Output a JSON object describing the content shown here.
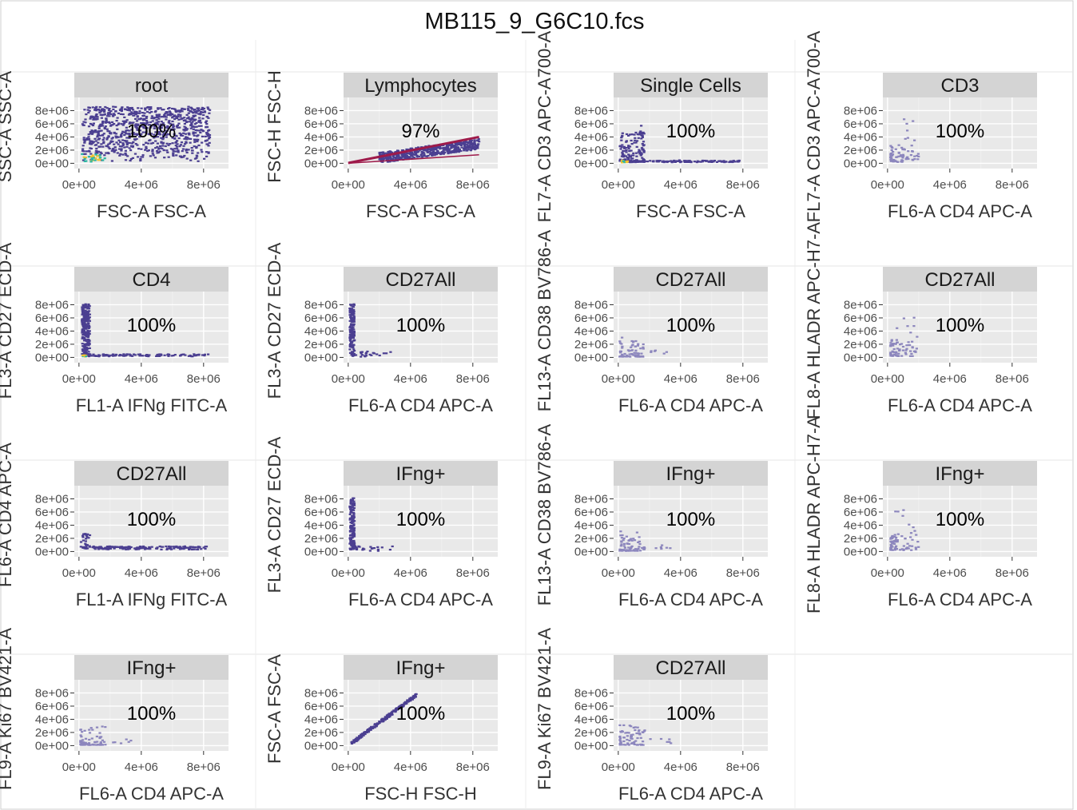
{
  "title": "MB115_9_G6C10.fcs",
  "chart_data": {
    "type": "scatter",
    "title": "MB115_9_G6C10.fcs",
    "x_tick_labels": [
      "0e+00",
      "4e+06",
      "8e+06"
    ],
    "y_tick_labels": [
      "0e+00",
      "2e+06",
      "4e+06",
      "6e+06",
      "8e+06"
    ],
    "xlim": [
      -300000,
      9600000
    ],
    "ylim": [
      -800000,
      10000000
    ],
    "colors": {
      "hex": "#4b3f91",
      "hex_light": "#8c86bd",
      "line": "#9e1a4a",
      "strip": "#d4d4d4",
      "panel": "#e9e9e9"
    },
    "panels": [
      {
        "gate": "root",
        "xlabel": "FSC-A FSC-A",
        "ylabel": "SSC-A SSC-A",
        "percent": "100%",
        "pattern": "dense"
      },
      {
        "gate": "Lymphocytes",
        "xlabel": "FSC-A FSC-A",
        "ylabel": "FSC-H FSC-H",
        "percent": "97%",
        "pattern": "ramp"
      },
      {
        "gate": "Single Cells",
        "xlabel": "FSC-A FSC-A",
        "ylabel": "FL7-A CD3 APC-A700-A",
        "percent": "100%",
        "pattern": "cluster_tail"
      },
      {
        "gate": "CD3",
        "xlabel": "FL6-A CD4 APC-A",
        "ylabel": "FL7-A CD3 APC-A700-A",
        "percent": "100%",
        "pattern": "sparse"
      },
      {
        "gate": "CD4",
        "xlabel": "FL1-A IFNg FITC-A",
        "ylabel": "FL3-A CD27 ECD-A",
        "percent": "100%",
        "pattern": "L_shape"
      },
      {
        "gate": "CD27All",
        "xlabel": "FL6-A CD4 APC-A",
        "ylabel": "FL3-A CD27 ECD-A",
        "percent": "100%",
        "pattern": "vertical"
      },
      {
        "gate": "CD27All",
        "xlabel": "FL6-A CD4 APC-A",
        "ylabel": "FL13-A CD38 BV786-A",
        "percent": "100%",
        "pattern": "small_cluster"
      },
      {
        "gate": "CD27All",
        "xlabel": "FL6-A CD4 APC-A",
        "ylabel": "FL8-A HLADR APC-H7-A",
        "percent": "100%",
        "pattern": "sparse"
      },
      {
        "gate": "CD27All",
        "xlabel": "FL1-A IFNg FITC-A",
        "ylabel": "FL6-A CD4 APC-A",
        "percent": "100%",
        "pattern": "horizontal"
      },
      {
        "gate": "IFng+",
        "xlabel": "FL6-A CD4 APC-A",
        "ylabel": "FL3-A CD27 ECD-A",
        "percent": "100%",
        "pattern": "vertical"
      },
      {
        "gate": "IFng+",
        "xlabel": "FL6-A CD4 APC-A",
        "ylabel": "FL13-A CD38 BV786-A",
        "percent": "100%",
        "pattern": "small_cluster"
      },
      {
        "gate": "IFng+",
        "xlabel": "FL6-A CD4 APC-A",
        "ylabel": "FL8-A HLADR APC-H7-A",
        "percent": "100%",
        "pattern": "sparse"
      },
      {
        "gate": "IFng+",
        "xlabel": "FL6-A CD4 APC-A",
        "ylabel": "FL9-A Ki67 BV421-A",
        "percent": "100%",
        "pattern": "small_cluster"
      },
      {
        "gate": "IFng+",
        "xlabel": "FSC-H FSC-H",
        "ylabel": "FSC-A FSC-A",
        "percent": "100%",
        "pattern": "diagonal"
      },
      {
        "gate": "CD27All",
        "xlabel": "FL6-A CD4 APC-A",
        "ylabel": "FL9-A Ki67 BV421-A",
        "percent": "100%",
        "pattern": "small_cluster"
      }
    ]
  }
}
